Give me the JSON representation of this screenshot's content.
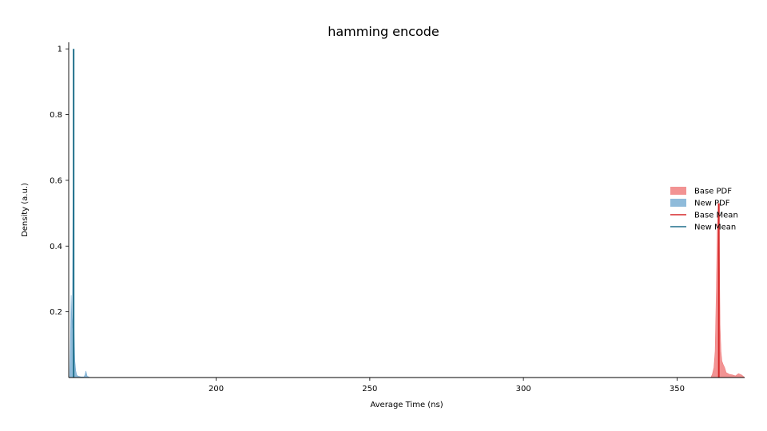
{
  "chart_data": {
    "type": "area",
    "title": "hamming encode",
    "xlabel": "Average Time (ns)",
    "ylabel": "Density (a.u.)",
    "xlim": [
      152,
      372
    ],
    "ylim": [
      0,
      1.02
    ],
    "xticks": [
      200,
      250,
      300,
      350
    ],
    "yticks": [
      0.2,
      0.4,
      0.6,
      0.8,
      1
    ],
    "xtick_labels": [
      "200",
      "250",
      "300",
      "350"
    ],
    "ytick_labels": [
      "0.2",
      "0.4",
      "0.6",
      "0.8",
      "1"
    ],
    "grid": false,
    "legend_position": "center-right",
    "series": [
      {
        "name": "Base PDF",
        "kind": "pdf",
        "color": "#f08080",
        "x": [
          361,
          361.5,
          362,
          362.4,
          362.8,
          363.1,
          363.4,
          363.7,
          364.0,
          364.3,
          364.6,
          365.0,
          365.5,
          366,
          367,
          368,
          369,
          370,
          371,
          372
        ],
        "y": [
          0,
          0.01,
          0.03,
          0.08,
          0.27,
          0.45,
          0.53,
          0.48,
          0.16,
          0.08,
          0.05,
          0.04,
          0.03,
          0.015,
          0.01,
          0.008,
          0.005,
          0.012,
          0.008,
          0
        ]
      },
      {
        "name": "New PDF",
        "kind": "pdf",
        "color": "#7bafd4",
        "x": [
          152.3,
          152.5,
          152.8,
          153.0,
          153.2,
          153.4,
          153.6,
          153.8,
          154.0,
          154.3,
          154.6,
          155,
          156,
          157,
          157.3,
          157.6,
          158,
          159
        ],
        "y": [
          0,
          0.07,
          0.25,
          0.18,
          0.15,
          0.57,
          0.23,
          0.12,
          0.05,
          0.02,
          0.008,
          0.004,
          0.002,
          0.002,
          0.008,
          0.02,
          0.004,
          0
        ]
      },
      {
        "name": "Base Mean",
        "kind": "mean",
        "color": "#d62728",
        "x": 363.6,
        "y": 0.53
      },
      {
        "name": "New Mean",
        "kind": "mean",
        "color": "#1f6f8b",
        "x": 153.6,
        "y": 1.0
      }
    ]
  }
}
